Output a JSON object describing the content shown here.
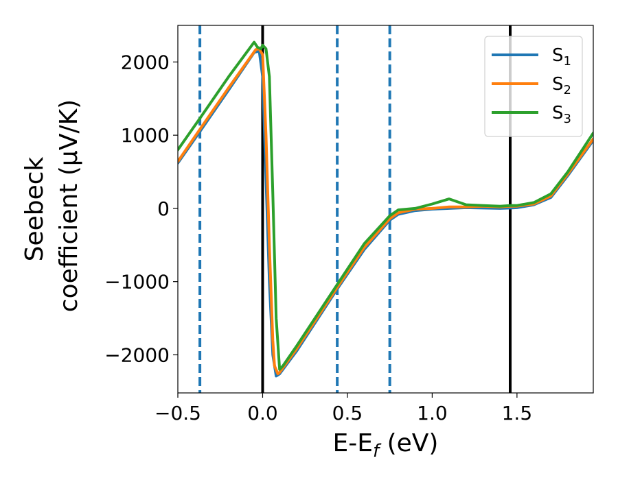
{
  "chart_data": {
    "type": "line",
    "title": "",
    "xlabel": "E-E",
    "xlabel_sub": "f",
    "xlabel_unit": " (eV)",
    "ylabel_line1": "Seebeck",
    "ylabel_line2": "coefficient  (μV/K)",
    "xlim": [
      -0.5,
      1.95
    ],
    "ylim": [
      -2520,
      2500
    ],
    "x_ticks": [
      -0.5,
      0.0,
      0.5,
      1.0,
      1.5
    ],
    "x_tick_labels": [
      "−0.5",
      "0.0",
      "0.5",
      "1.0",
      "1.5"
    ],
    "y_ticks": [
      -2000,
      -1000,
      0,
      1000,
      2000
    ],
    "y_tick_labels": [
      "−2000",
      "−1000",
      "0",
      "1000",
      "2000"
    ],
    "grid": false,
    "legend_position": "top-right",
    "vertical_lines": [
      {
        "x": -0.37,
        "style": "dashed",
        "color": "#1f77b4"
      },
      {
        "x": 0.0,
        "style": "solid",
        "color": "#000000"
      },
      {
        "x": 0.44,
        "style": "dashed",
        "color": "#1f77b4"
      },
      {
        "x": 0.75,
        "style": "dashed",
        "color": "#1f77b4"
      },
      {
        "x": 1.46,
        "style": "solid",
        "color": "#000000"
      }
    ],
    "series": [
      {
        "name": "S",
        "sub": "1",
        "color": "#1f77b4",
        "x": [
          -0.5,
          -0.37,
          -0.2,
          -0.05,
          -0.02,
          0.0,
          0.02,
          0.04,
          0.06,
          0.08,
          0.1,
          0.2,
          0.44,
          0.6,
          0.75,
          0.8,
          0.9,
          1.0,
          1.1,
          1.2,
          1.3,
          1.4,
          1.46,
          1.5,
          1.6,
          1.7,
          1.8,
          1.95
        ],
        "y": [
          620,
          1050,
          1620,
          2130,
          2150,
          1800,
          400,
          -1000,
          -2000,
          -2290,
          -2260,
          -1950,
          -1100,
          -560,
          -160,
          -80,
          -30,
          -10,
          0,
          10,
          5,
          0,
          5,
          10,
          50,
          150,
          450,
          930
        ]
      },
      {
        "name": "S",
        "sub": "2",
        "color": "#ff7f0e",
        "x": [
          -0.5,
          -0.37,
          -0.2,
          -0.04,
          -0.02,
          0.0,
          0.02,
          0.04,
          0.06,
          0.07,
          0.09,
          0.1,
          0.2,
          0.44,
          0.6,
          0.75,
          0.8,
          0.9,
          1.0,
          1.1,
          1.2,
          1.3,
          1.4,
          1.46,
          1.5,
          1.6,
          1.7,
          1.8,
          1.95
        ],
        "y": [
          640,
          1080,
          1650,
          2170,
          2180,
          2100,
          1000,
          -500,
          -1800,
          -2150,
          -2260,
          -2240,
          -1920,
          -1080,
          -530,
          -140,
          -60,
          -10,
          0,
          20,
          20,
          30,
          20,
          30,
          30,
          60,
          170,
          470,
          950
        ]
      },
      {
        "name": "S",
        "sub": "3",
        "color": "#2ca02c",
        "x": [
          -0.5,
          -0.37,
          -0.2,
          -0.05,
          -0.03,
          -0.01,
          0.0,
          0.02,
          0.04,
          0.06,
          0.08,
          0.1,
          0.12,
          0.2,
          0.44,
          0.6,
          0.75,
          0.8,
          0.9,
          1.0,
          1.1,
          1.2,
          1.3,
          1.4,
          1.46,
          1.5,
          1.6,
          1.7,
          1.8,
          1.95
        ],
        "y": [
          800,
          1230,
          1800,
          2270,
          2200,
          2180,
          2230,
          2180,
          1800,
          200,
          -1500,
          -2200,
          -2150,
          -1880,
          -1040,
          -480,
          -100,
          -20,
          0,
          60,
          130,
          50,
          40,
          30,
          40,
          40,
          80,
          200,
          500,
          1030
        ]
      }
    ]
  }
}
